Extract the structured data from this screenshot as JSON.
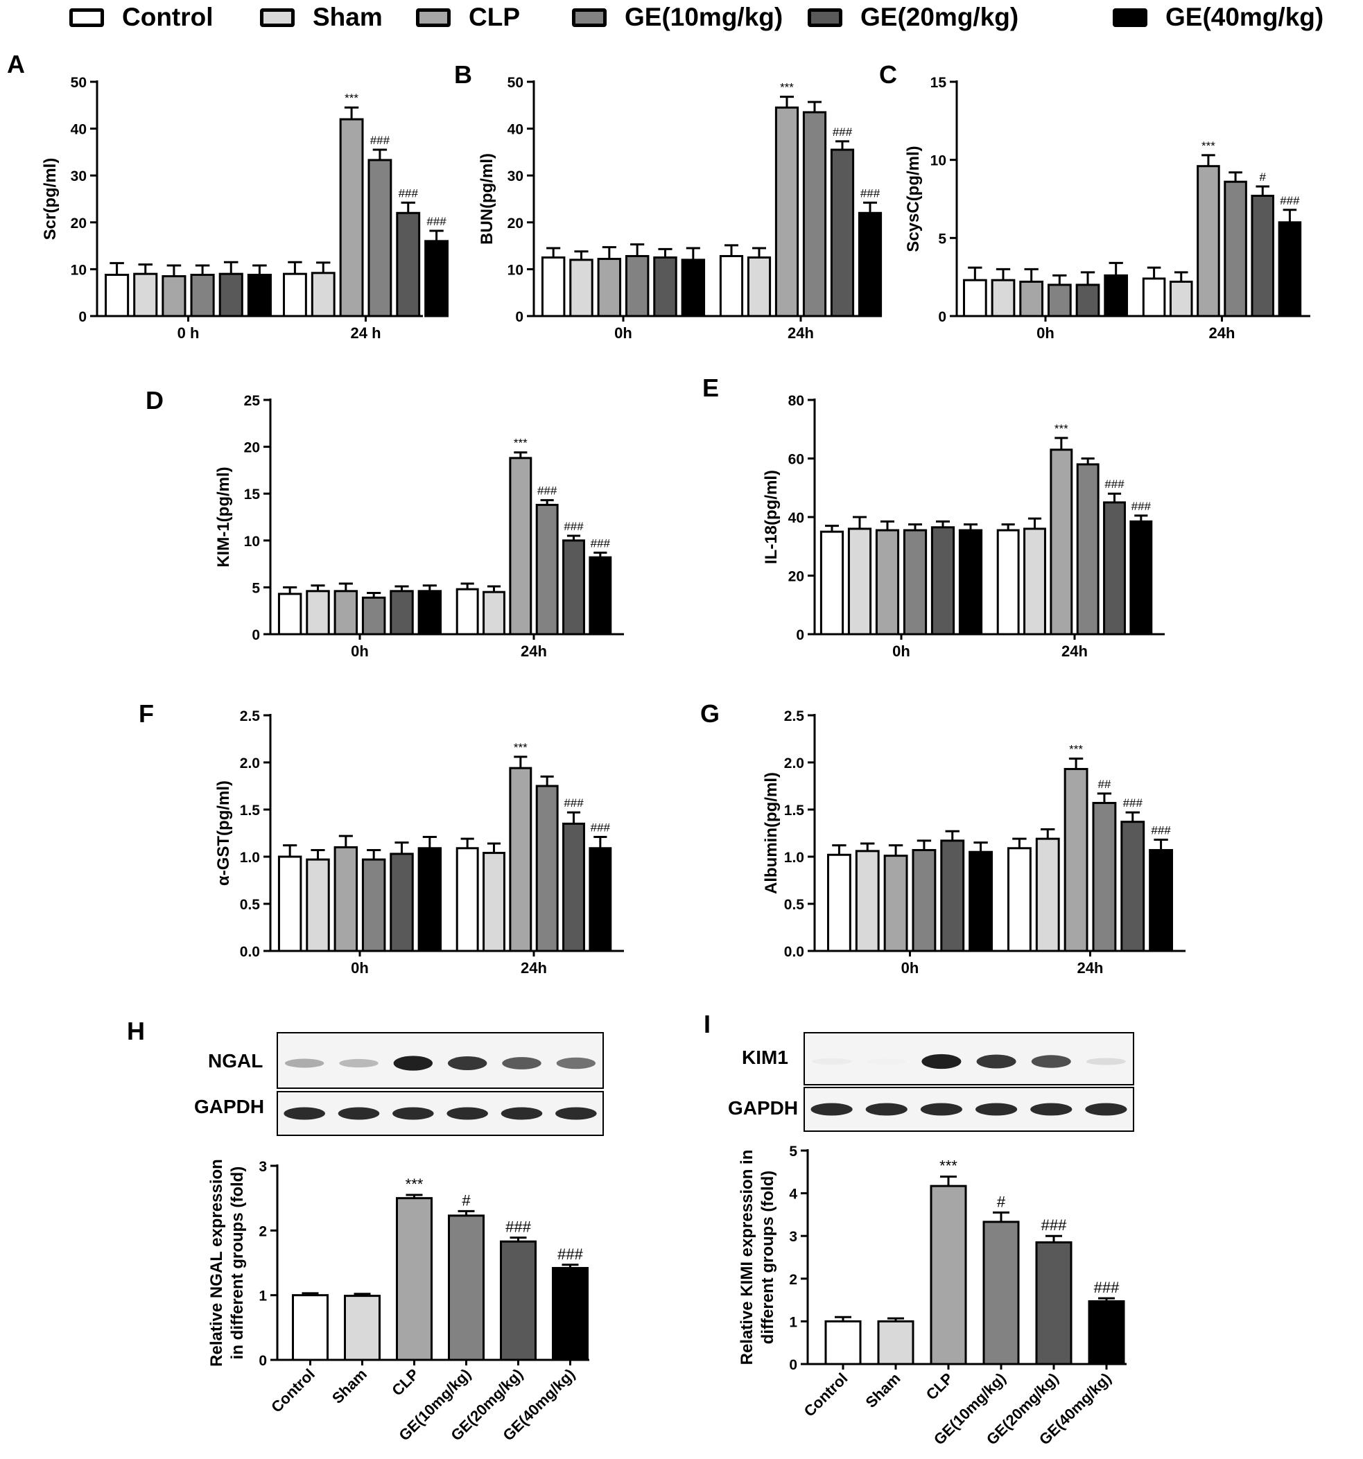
{
  "legend": {
    "items": [
      {
        "label": "Control",
        "color": "#ffffff"
      },
      {
        "label": "Sham",
        "color": "#d9d9d9"
      },
      {
        "label": "CLP",
        "color": "#a6a6a6"
      },
      {
        "label": "GE(10mg/kg)",
        "color": "#828282"
      },
      {
        "label": "GE(20mg/kg)",
        "color": "#595959"
      },
      {
        "label": "GE(40mg/kg)",
        "color": "#000000"
      }
    ]
  },
  "blots": [
    {
      "panel": "H",
      "protein_label": "NGAL",
      "control_label": "GAPDH",
      "protein_intensity": [
        0.35,
        0.3,
        0.95,
        0.85,
        0.7,
        0.6
      ],
      "gapdh_intensity": [
        0.9,
        0.9,
        0.9,
        0.9,
        0.9,
        0.9
      ]
    },
    {
      "panel": "I",
      "protein_label": "KIM1",
      "control_label": "GAPDH",
      "protein_intensity": [
        0.08,
        0.06,
        0.95,
        0.85,
        0.75,
        0.15
      ],
      "gapdh_intensity": [
        0.9,
        0.9,
        0.9,
        0.9,
        0.9,
        0.9
      ]
    }
  ],
  "chart_data": [
    {
      "panel": "A",
      "type": "bar",
      "ylabel": "Scr(pg/ml)",
      "ylim": [
        0,
        50
      ],
      "yticks": [
        0,
        10,
        20,
        30,
        40,
        50
      ],
      "categories": [
        "0 h",
        "24 h"
      ],
      "series": [
        {
          "name": "Control",
          "values": [
            8.8,
            9.0
          ],
          "errors": [
            2.5,
            2.5
          ]
        },
        {
          "name": "Sham",
          "values": [
            9.0,
            9.2
          ],
          "errors": [
            2.0,
            2.2
          ]
        },
        {
          "name": "CLP",
          "values": [
            8.5,
            42.0
          ],
          "errors": [
            2.3,
            2.5
          ]
        },
        {
          "name": "GE(10mg/kg)",
          "values": [
            8.8,
            33.3
          ],
          "errors": [
            2.0,
            2.2
          ]
        },
        {
          "name": "GE(20mg/kg)",
          "values": [
            9.0,
            22.0
          ],
          "errors": [
            2.5,
            2.2
          ]
        },
        {
          "name": "GE(40mg/kg)",
          "values": [
            8.8,
            16.0
          ],
          "errors": [
            2.0,
            2.2
          ]
        }
      ],
      "annotations": [
        [
          "",
          "***"
        ],
        [
          "",
          "###"
        ],
        [
          "",
          "###"
        ],
        [
          "",
          "###"
        ]
      ],
      "annotation_series": [
        2,
        3,
        4,
        5
      ]
    },
    {
      "panel": "B",
      "type": "bar",
      "ylabel": "BUN(pg/ml)",
      "ylim": [
        0,
        50
      ],
      "yticks": [
        0,
        10,
        20,
        30,
        40,
        50
      ],
      "categories": [
        "0h",
        "24h"
      ],
      "series": [
        {
          "name": "Control",
          "values": [
            12.5,
            12.8
          ],
          "errors": [
            2.0,
            2.3
          ]
        },
        {
          "name": "Sham",
          "values": [
            12.0,
            12.5
          ],
          "errors": [
            1.8,
            2.0
          ]
        },
        {
          "name": "CLP",
          "values": [
            12.2,
            44.5
          ],
          "errors": [
            2.5,
            2.3
          ]
        },
        {
          "name": "GE(10mg/kg)",
          "values": [
            12.8,
            43.5
          ],
          "errors": [
            2.5,
            2.2
          ]
        },
        {
          "name": "GE(20mg/kg)",
          "values": [
            12.5,
            35.5
          ],
          "errors": [
            1.8,
            1.8
          ]
        },
        {
          "name": "GE(40mg/kg)",
          "values": [
            12.0,
            22.0
          ],
          "errors": [
            2.5,
            2.2
          ]
        }
      ],
      "annotations": [
        [
          "",
          "***"
        ],
        [
          "",
          "###"
        ],
        [
          "",
          "###"
        ]
      ],
      "annotation_series": [
        2,
        4,
        5
      ]
    },
    {
      "panel": "C",
      "type": "bar",
      "ylabel": "ScysC(pg/ml)",
      "ylim": [
        0,
        15
      ],
      "yticks": [
        0,
        5,
        10,
        15
      ],
      "categories": [
        "0h",
        "24h"
      ],
      "series": [
        {
          "name": "Control",
          "values": [
            2.3,
            2.4
          ],
          "errors": [
            0.8,
            0.7
          ]
        },
        {
          "name": "Sham",
          "values": [
            2.3,
            2.2
          ],
          "errors": [
            0.7,
            0.6
          ]
        },
        {
          "name": "CLP",
          "values": [
            2.2,
            9.6
          ],
          "errors": [
            0.8,
            0.7
          ]
        },
        {
          "name": "GE(10mg/kg)",
          "values": [
            2.0,
            8.6
          ],
          "errors": [
            0.6,
            0.6
          ]
        },
        {
          "name": "GE(20mg/kg)",
          "values": [
            2.0,
            7.7
          ],
          "errors": [
            0.8,
            0.6
          ]
        },
        {
          "name": "GE(40mg/kg)",
          "values": [
            2.6,
            6.0
          ],
          "errors": [
            0.8,
            0.8
          ]
        }
      ],
      "annotations": [
        [
          "",
          "***"
        ],
        [
          "",
          "#"
        ],
        [
          "",
          "###"
        ]
      ],
      "annotation_series": [
        2,
        4,
        5
      ]
    },
    {
      "panel": "D",
      "type": "bar",
      "ylabel": "KIM-1(pg/ml)",
      "ylim": [
        0,
        25
      ],
      "yticks": [
        0,
        5,
        10,
        15,
        20,
        25
      ],
      "categories": [
        "0h",
        "24h"
      ],
      "series": [
        {
          "name": "Control",
          "values": [
            4.3,
            4.8
          ],
          "errors": [
            0.7,
            0.6
          ]
        },
        {
          "name": "Sham",
          "values": [
            4.6,
            4.5
          ],
          "errors": [
            0.6,
            0.6
          ]
        },
        {
          "name": "CLP",
          "values": [
            4.6,
            18.8
          ],
          "errors": [
            0.8,
            0.6
          ]
        },
        {
          "name": "GE(10mg/kg)",
          "values": [
            3.9,
            13.8
          ],
          "errors": [
            0.5,
            0.5
          ]
        },
        {
          "name": "GE(20mg/kg)",
          "values": [
            4.6,
            10.0
          ],
          "errors": [
            0.5,
            0.5
          ]
        },
        {
          "name": "GE(40mg/kg)",
          "values": [
            4.6,
            8.2
          ],
          "errors": [
            0.6,
            0.5
          ]
        }
      ],
      "annotations": [
        [
          "",
          "***"
        ],
        [
          "",
          "###"
        ],
        [
          "",
          "###"
        ],
        [
          "",
          "###"
        ]
      ],
      "annotation_series": [
        2,
        3,
        4,
        5
      ]
    },
    {
      "panel": "E",
      "type": "bar",
      "ylabel": "IL-18(pg/ml)",
      "ylim": [
        0,
        80
      ],
      "yticks": [
        0,
        20,
        40,
        60,
        80
      ],
      "categories": [
        "0h",
        "24h"
      ],
      "series": [
        {
          "name": "Control",
          "values": [
            35.0,
            35.5
          ],
          "errors": [
            2.0,
            2.0
          ]
        },
        {
          "name": "Sham",
          "values": [
            36.0,
            36.0
          ],
          "errors": [
            4.0,
            3.5
          ]
        },
        {
          "name": "CLP",
          "values": [
            35.5,
            63.0
          ],
          "errors": [
            3.0,
            4.0
          ]
        },
        {
          "name": "GE(10mg/kg)",
          "values": [
            35.5,
            58.0
          ],
          "errors": [
            2.0,
            2.0
          ]
        },
        {
          "name": "GE(20mg/kg)",
          "values": [
            36.5,
            45.0
          ],
          "errors": [
            2.0,
            3.0
          ]
        },
        {
          "name": "GE(40mg/kg)",
          "values": [
            35.5,
            38.5
          ],
          "errors": [
            2.0,
            2.0
          ]
        }
      ],
      "annotations": [
        [
          "",
          "***"
        ],
        [
          "",
          "###"
        ],
        [
          "",
          "###"
        ]
      ],
      "annotation_series": [
        2,
        4,
        5
      ]
    },
    {
      "panel": "F",
      "type": "bar",
      "ylabel": "α-GST(pg/ml)",
      "ylim": [
        0,
        2.5
      ],
      "yticks": [
        "0.0",
        "0.5",
        "1.0",
        "1.5",
        "2.0",
        "2.5"
      ],
      "categories": [
        "0h",
        "24h"
      ],
      "series": [
        {
          "name": "Control",
          "values": [
            1.0,
            1.09
          ],
          "errors": [
            0.12,
            0.1
          ]
        },
        {
          "name": "Sham",
          "values": [
            0.97,
            1.04
          ],
          "errors": [
            0.1,
            0.1
          ]
        },
        {
          "name": "CLP",
          "values": [
            1.1,
            1.94
          ],
          "errors": [
            0.12,
            0.12
          ]
        },
        {
          "name": "GE(10mg/kg)",
          "values": [
            0.97,
            1.75
          ],
          "errors": [
            0.1,
            0.1
          ]
        },
        {
          "name": "GE(20mg/kg)",
          "values": [
            1.03,
            1.35
          ],
          "errors": [
            0.12,
            0.12
          ]
        },
        {
          "name": "GE(40mg/kg)",
          "values": [
            1.09,
            1.09
          ],
          "errors": [
            0.12,
            0.12
          ]
        }
      ],
      "annotations": [
        [
          "",
          "***"
        ],
        [
          "",
          "###"
        ],
        [
          "",
          "###"
        ]
      ],
      "annotation_series": [
        2,
        4,
        5
      ]
    },
    {
      "panel": "G",
      "type": "bar",
      "ylabel": "Albumin(pg/ml)",
      "ylim": [
        0,
        2.5
      ],
      "yticks": [
        "0.0",
        "0.5",
        "1.0",
        "1.5",
        "2.0",
        "2.5"
      ],
      "categories": [
        "0h",
        "24h"
      ],
      "series": [
        {
          "name": "Control",
          "values": [
            1.02,
            1.09
          ],
          "errors": [
            0.1,
            0.1
          ]
        },
        {
          "name": "Sham",
          "values": [
            1.06,
            1.19
          ],
          "errors": [
            0.08,
            0.1
          ]
        },
        {
          "name": "CLP",
          "values": [
            1.01,
            1.93
          ],
          "errors": [
            0.11,
            0.11
          ]
        },
        {
          "name": "GE(10mg/kg)",
          "values": [
            1.07,
            1.57
          ],
          "errors": [
            0.1,
            0.1
          ]
        },
        {
          "name": "GE(20mg/kg)",
          "values": [
            1.17,
            1.37
          ],
          "errors": [
            0.1,
            0.1
          ]
        },
        {
          "name": "GE(40mg/kg)",
          "values": [
            1.05,
            1.07
          ],
          "errors": [
            0.1,
            0.11
          ]
        }
      ],
      "annotations": [
        [
          "",
          "***"
        ],
        [
          "",
          "##"
        ],
        [
          "",
          "###"
        ],
        [
          "",
          "###"
        ]
      ],
      "annotation_series": [
        2,
        3,
        4,
        5
      ]
    },
    {
      "panel": "H",
      "type": "bar",
      "ylabel_lines": [
        "Relative NGAL expression",
        "in different groups (fold)"
      ],
      "ylim": [
        0,
        3
      ],
      "yticks": [
        0,
        1,
        2,
        3
      ],
      "categories": [
        "Control",
        "Sham",
        "CLP",
        "GE(10mg/kg)",
        "GE(20mg/kg)",
        "GE(40mg/kg)"
      ],
      "values": [
        1.0,
        0.99,
        2.5,
        2.23,
        1.83,
        1.42
      ],
      "errors": [
        0.03,
        0.03,
        0.05,
        0.07,
        0.06,
        0.05
      ],
      "annotations": [
        "",
        "",
        "***",
        "#",
        "###",
        "###"
      ]
    },
    {
      "panel": "I",
      "type": "bar",
      "ylabel_lines": [
        "Relative KIMI expression in",
        "different groups (fold)"
      ],
      "ylim": [
        0,
        5
      ],
      "yticks": [
        0,
        1,
        2,
        3,
        4,
        5
      ],
      "categories": [
        "Control",
        "Sham",
        "CLP",
        "GE(10mg/kg)",
        "GE(20mg/kg)",
        "GE(40mg/kg)"
      ],
      "values": [
        1.0,
        1.0,
        4.17,
        3.33,
        2.85,
        1.47
      ],
      "errors": [
        0.1,
        0.07,
        0.22,
        0.22,
        0.15,
        0.07
      ],
      "annotations": [
        "",
        "",
        "***",
        "#",
        "###",
        "###"
      ]
    }
  ]
}
